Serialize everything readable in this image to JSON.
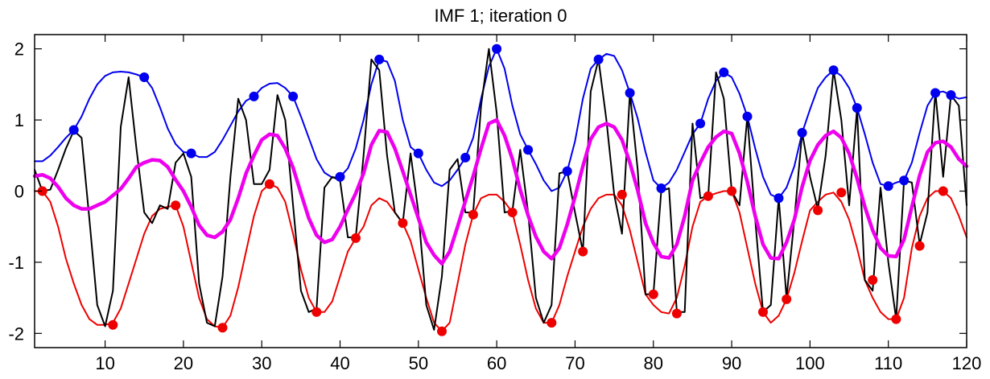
{
  "chart_data": {
    "type": "line",
    "title": "IMF 1;   iteration 0",
    "xlabel": "",
    "ylabel": "",
    "xlim": [
      1,
      120
    ],
    "ylim": [
      -2.2,
      2.2
    ],
    "xticks": [
      10,
      20,
      30,
      40,
      50,
      60,
      70,
      80,
      90,
      100,
      110,
      120
    ],
    "xtick_labels": [
      "10",
      "20",
      "30",
      "40",
      "50",
      "60",
      "70",
      "80",
      "90",
      "100",
      "110",
      "120"
    ],
    "yticks": [
      -2,
      -1,
      0,
      1,
      2
    ],
    "ytick_labels": [
      "-2",
      "-1",
      "0",
      "1",
      "2"
    ],
    "grid": false,
    "legend": "none",
    "colors": {
      "signal": "#000000",
      "upper_envelope": "#0000ee",
      "lower_envelope": "#ee0000",
      "mean": "#ee00ee"
    },
    "series": [
      {
        "role": "signal",
        "x": [
          1,
          2,
          3,
          4,
          5,
          6,
          7,
          8,
          9,
          10,
          11,
          12,
          13,
          14,
          15,
          16,
          17,
          18,
          19,
          20,
          21,
          22,
          23,
          24,
          25,
          26,
          27,
          28,
          29,
          30,
          31,
          32,
          33,
          34,
          35,
          36,
          37,
          38,
          39,
          40,
          41,
          42,
          43,
          44,
          45,
          46,
          47,
          48,
          49,
          50,
          51,
          52,
          53,
          54,
          55,
          56,
          57,
          58,
          59,
          60,
          61,
          62,
          63,
          64,
          65,
          66,
          67,
          68,
          69,
          70,
          71,
          72,
          73,
          74,
          75,
          76,
          77,
          78,
          79,
          80,
          81,
          82,
          83,
          84,
          85,
          86,
          87,
          88,
          89,
          90,
          91,
          92,
          93,
          94,
          95,
          96,
          97,
          98,
          99,
          100,
          101,
          102,
          103,
          104,
          105,
          106,
          107,
          108,
          109,
          110,
          111,
          112,
          113,
          114,
          115,
          116,
          117,
          118,
          119,
          120
        ],
        "y": [
          0.3,
          0.0,
          0.02,
          0.3,
          0.6,
          0.85,
          0.75,
          -0.4,
          -1.6,
          -1.9,
          -1.4,
          0.9,
          1.6,
          0.6,
          -0.3,
          -0.45,
          -0.2,
          -0.25,
          0.4,
          0.53,
          0.2,
          -1.3,
          -1.85,
          -1.9,
          -1.2,
          0.2,
          1.3,
          1.0,
          0.1,
          0.1,
          0.3,
          1.35,
          1.0,
          -0.2,
          -1.4,
          -1.7,
          -1.65,
          0.05,
          0.2,
          0.15,
          -0.65,
          -0.65,
          0.5,
          1.85,
          1.7,
          0.5,
          -0.3,
          -0.45,
          0.53,
          -0.3,
          -1.6,
          -1.95,
          -1.2,
          0.3,
          0.45,
          -0.3,
          -0.3,
          1.2,
          2.0,
          1.1,
          -0.3,
          -0.28,
          0.58,
          -0.3,
          -1.5,
          -1.85,
          -1.6,
          0.25,
          0.28,
          -0.3,
          -0.85,
          1.4,
          1.85,
          1.0,
          -0.05,
          -0.6,
          1.38,
          0.3,
          -1.45,
          -1.45,
          0.0,
          0.04,
          -1.7,
          -1.7,
          0.95,
          -0.1,
          -0.07,
          1.67,
          1.3,
          0.0,
          -0.2,
          1.05,
          -0.4,
          -1.7,
          -1.6,
          -0.1,
          -1.5,
          -0.4,
          0.82,
          0.2,
          -0.25,
          0.5,
          1.7,
          1.0,
          -0.2,
          1.15,
          -1.25,
          -1.4,
          0.05,
          -1.0,
          -1.8,
          0.15,
          0.12,
          -0.75,
          -0.3,
          1.4,
          0.2,
          1.35,
          1.2,
          -0.2
        ],
        "points_max": [
          [
            6,
            0.86
          ],
          [
            15,
            1.6
          ],
          [
            21,
            0.53
          ],
          [
            29,
            1.33
          ],
          [
            34,
            1.33
          ],
          [
            40,
            0.2
          ],
          [
            45,
            1.85
          ],
          [
            50,
            0.53
          ],
          [
            56,
            0.47
          ],
          [
            60,
            2.0
          ],
          [
            64,
            0.58
          ],
          [
            69,
            0.28
          ],
          [
            73,
            1.85
          ],
          [
            77,
            1.38
          ],
          [
            81,
            0.04
          ],
          [
            86,
            0.95
          ],
          [
            89,
            1.67
          ],
          [
            92,
            1.05
          ],
          [
            96,
            -0.1
          ],
          [
            99,
            0.82
          ],
          [
            103,
            1.7
          ],
          [
            106,
            1.17
          ],
          [
            110,
            0.07
          ],
          [
            112,
            0.15
          ],
          [
            116,
            1.38
          ],
          [
            118,
            1.35
          ]
        ],
        "points_min": [
          [
            2,
            0.0
          ],
          [
            11,
            -1.88
          ],
          [
            19,
            -0.2
          ],
          [
            25,
            -1.92
          ],
          [
            31,
            0.1
          ],
          [
            37,
            -1.7
          ],
          [
            42,
            -0.66
          ],
          [
            48,
            -0.45
          ],
          [
            53,
            -1.97
          ],
          [
            57,
            -0.33
          ],
          [
            62,
            -0.3
          ],
          [
            67,
            -1.85
          ],
          [
            71,
            -0.85
          ],
          [
            76,
            -0.05
          ],
          [
            80,
            -1.45
          ],
          [
            83,
            -1.72
          ],
          [
            87,
            -0.07
          ],
          [
            90,
            0.0
          ],
          [
            94,
            -1.7
          ],
          [
            97,
            -1.52
          ],
          [
            101,
            -0.27
          ],
          [
            104,
            -0.02
          ],
          [
            108,
            -1.25
          ],
          [
            111,
            -1.8
          ],
          [
            114,
            -0.77
          ],
          [
            117,
            0.0
          ]
        ]
      },
      {
        "role": "upper_envelope",
        "x": [
          1,
          2,
          3,
          4,
          5,
          6,
          7,
          8,
          9,
          10,
          11,
          12,
          13,
          14,
          15,
          16,
          17,
          18,
          19,
          20,
          21,
          22,
          23,
          24,
          25,
          26,
          27,
          28,
          29,
          30,
          31,
          32,
          33,
          34,
          35,
          36,
          37,
          38,
          39,
          40,
          41,
          42,
          43,
          44,
          45,
          46,
          47,
          48,
          49,
          50,
          51,
          52,
          53,
          54,
          55,
          56,
          57,
          58,
          59,
          60,
          61,
          62,
          63,
          64,
          65,
          66,
          67,
          68,
          69,
          70,
          71,
          72,
          73,
          74,
          75,
          76,
          77,
          78,
          79,
          80,
          81,
          82,
          83,
          84,
          85,
          86,
          87,
          88,
          89,
          90,
          91,
          92,
          93,
          94,
          95,
          96,
          97,
          98,
          99,
          100,
          101,
          102,
          103,
          104,
          105,
          106,
          107,
          108,
          109,
          110,
          111,
          112,
          113,
          114,
          115,
          116,
          117,
          118,
          119,
          120
        ],
        "y": [
          0.42,
          0.42,
          0.5,
          0.62,
          0.75,
          0.86,
          1.05,
          1.3,
          1.5,
          1.62,
          1.67,
          1.68,
          1.67,
          1.64,
          1.6,
          1.45,
          1.18,
          0.88,
          0.66,
          0.55,
          0.53,
          0.48,
          0.48,
          0.55,
          0.72,
          0.92,
          1.12,
          1.27,
          1.33,
          1.45,
          1.51,
          1.52,
          1.45,
          1.33,
          1.05,
          0.75,
          0.45,
          0.26,
          0.19,
          0.2,
          0.32,
          0.6,
          1.0,
          1.5,
          1.85,
          1.82,
          1.55,
          1.0,
          0.62,
          0.53,
          0.3,
          0.12,
          0.07,
          0.15,
          0.3,
          0.47,
          0.75,
          1.3,
          1.75,
          2.0,
          1.72,
          1.2,
          0.8,
          0.58,
          0.38,
          0.15,
          0.0,
          0.05,
          0.28,
          0.7,
          1.3,
          1.72,
          1.85,
          1.93,
          1.9,
          1.7,
          1.38,
          1.02,
          0.55,
          0.15,
          0.04,
          0.12,
          0.3,
          0.55,
          0.8,
          0.95,
          1.3,
          1.55,
          1.67,
          1.6,
          1.37,
          1.05,
          0.6,
          0.2,
          -0.05,
          -0.1,
          0.05,
          0.35,
          0.82,
          1.15,
          1.45,
          1.6,
          1.7,
          1.62,
          1.45,
          1.17,
          0.8,
          0.4,
          0.1,
          0.07,
          0.12,
          0.15,
          0.4,
          0.82,
          1.2,
          1.38,
          1.4,
          1.35,
          1.3,
          1.32
        ]
      },
      {
        "role": "lower_envelope",
        "x": [
          1,
          2,
          3,
          4,
          5,
          6,
          7,
          8,
          9,
          10,
          11,
          12,
          13,
          14,
          15,
          16,
          17,
          18,
          19,
          20,
          21,
          22,
          23,
          24,
          25,
          26,
          27,
          28,
          29,
          30,
          31,
          32,
          33,
          34,
          35,
          36,
          37,
          38,
          39,
          40,
          41,
          42,
          43,
          44,
          45,
          46,
          47,
          48,
          49,
          50,
          51,
          52,
          53,
          54,
          55,
          56,
          57,
          58,
          59,
          60,
          61,
          62,
          63,
          64,
          65,
          66,
          67,
          68,
          69,
          70,
          71,
          72,
          73,
          74,
          75,
          76,
          77,
          78,
          79,
          80,
          81,
          82,
          83,
          84,
          85,
          86,
          87,
          88,
          89,
          90,
          91,
          92,
          93,
          94,
          95,
          96,
          97,
          98,
          99,
          100,
          101,
          102,
          103,
          104,
          105,
          106,
          107,
          108,
          109,
          110,
          111,
          112,
          113,
          114,
          115,
          116,
          117,
          118,
          119,
          120
        ],
        "y": [
          0.0,
          0.0,
          -0.15,
          -0.5,
          -0.95,
          -1.3,
          -1.6,
          -1.8,
          -1.88,
          -1.88,
          -1.85,
          -1.65,
          -1.3,
          -0.95,
          -0.6,
          -0.35,
          -0.25,
          -0.22,
          -0.2,
          -0.5,
          -1.0,
          -1.5,
          -1.8,
          -1.9,
          -1.92,
          -1.75,
          -1.35,
          -0.85,
          -0.35,
          0.0,
          0.1,
          0.05,
          -0.15,
          -0.6,
          -1.1,
          -1.5,
          -1.7,
          -1.7,
          -1.55,
          -1.2,
          -0.85,
          -0.66,
          -0.5,
          -0.2,
          -0.1,
          -0.15,
          -0.3,
          -0.45,
          -0.7,
          -1.1,
          -1.5,
          -1.85,
          -1.97,
          -1.85,
          -1.3,
          -0.75,
          -0.33,
          -0.1,
          -0.05,
          -0.05,
          -0.15,
          -0.3,
          -0.75,
          -1.25,
          -1.65,
          -1.85,
          -1.85,
          -1.6,
          -1.2,
          -0.85,
          -0.5,
          -0.25,
          -0.1,
          -0.05,
          -0.05,
          -0.2,
          -0.55,
          -1.0,
          -1.45,
          -1.6,
          -1.7,
          -1.72,
          -1.5,
          -1.05,
          -0.5,
          -0.15,
          -0.07,
          -0.03,
          0.0,
          0.0,
          -0.3,
          -0.8,
          -1.3,
          -1.7,
          -1.85,
          -1.75,
          -1.52,
          -1.15,
          -0.7,
          -0.27,
          -0.15,
          -0.05,
          -0.02,
          -0.15,
          -0.4,
          -0.8,
          -1.25,
          -1.5,
          -1.7,
          -1.8,
          -1.8,
          -1.5,
          -0.8,
          -0.35,
          -0.1,
          0.0,
          0.0,
          -0.1,
          -0.35,
          -0.65
        ]
      },
      {
        "role": "mean",
        "x": [
          1,
          2,
          3,
          4,
          5,
          6,
          7,
          8,
          9,
          10,
          11,
          12,
          13,
          14,
          15,
          16,
          17,
          18,
          19,
          20,
          21,
          22,
          23,
          24,
          25,
          26,
          27,
          28,
          29,
          30,
          31,
          32,
          33,
          34,
          35,
          36,
          37,
          38,
          39,
          40,
          41,
          42,
          43,
          44,
          45,
          46,
          47,
          48,
          49,
          50,
          51,
          52,
          53,
          54,
          55,
          56,
          57,
          58,
          59,
          60,
          61,
          62,
          63,
          64,
          65,
          66,
          67,
          68,
          69,
          70,
          71,
          72,
          73,
          74,
          75,
          76,
          77,
          78,
          79,
          80,
          81,
          82,
          83,
          84,
          85,
          86,
          87,
          88,
          89,
          90,
          91,
          92,
          93,
          94,
          95,
          96,
          97,
          98,
          99,
          100,
          101,
          102,
          103,
          104,
          105,
          106,
          107,
          108,
          109,
          110,
          111,
          112,
          113,
          114,
          115,
          116,
          117,
          118,
          119,
          120
        ],
        "y": [
          0.21,
          0.23,
          0.18,
          0.06,
          -0.1,
          -0.2,
          -0.25,
          -0.25,
          -0.2,
          -0.15,
          -0.06,
          0.03,
          0.18,
          0.34,
          0.4,
          0.44,
          0.43,
          0.34,
          0.16,
          0.0,
          -0.22,
          -0.48,
          -0.62,
          -0.65,
          -0.57,
          -0.4,
          -0.1,
          0.25,
          0.5,
          0.72,
          0.8,
          0.78,
          0.6,
          0.33,
          -0.03,
          -0.38,
          -0.62,
          -0.72,
          -0.68,
          -0.5,
          -0.26,
          -0.03,
          0.25,
          0.65,
          0.85,
          0.83,
          0.6,
          0.28,
          -0.05,
          -0.38,
          -0.72,
          -0.9,
          -1.02,
          -0.85,
          -0.5,
          -0.14,
          0.21,
          0.6,
          0.95,
          1.0,
          0.78,
          0.45,
          0.02,
          -0.34,
          -0.64,
          -0.85,
          -0.95,
          -0.8,
          -0.47,
          -0.08,
          0.35,
          0.73,
          0.9,
          0.95,
          0.9,
          0.72,
          0.4,
          0.01,
          -0.45,
          -0.73,
          -0.92,
          -0.94,
          -0.75,
          -0.35,
          0.15,
          0.4,
          0.62,
          0.76,
          0.84,
          0.81,
          0.53,
          0.13,
          -0.35,
          -0.75,
          -0.94,
          -0.95,
          -0.72,
          -0.4,
          0.06,
          0.43,
          0.65,
          0.78,
          0.84,
          0.75,
          0.53,
          0.18,
          -0.22,
          -0.55,
          -0.8,
          -0.91,
          -0.92,
          -0.68,
          -0.22,
          0.22,
          0.55,
          0.68,
          0.7,
          0.62,
          0.45,
          0.35
        ]
      }
    ]
  }
}
